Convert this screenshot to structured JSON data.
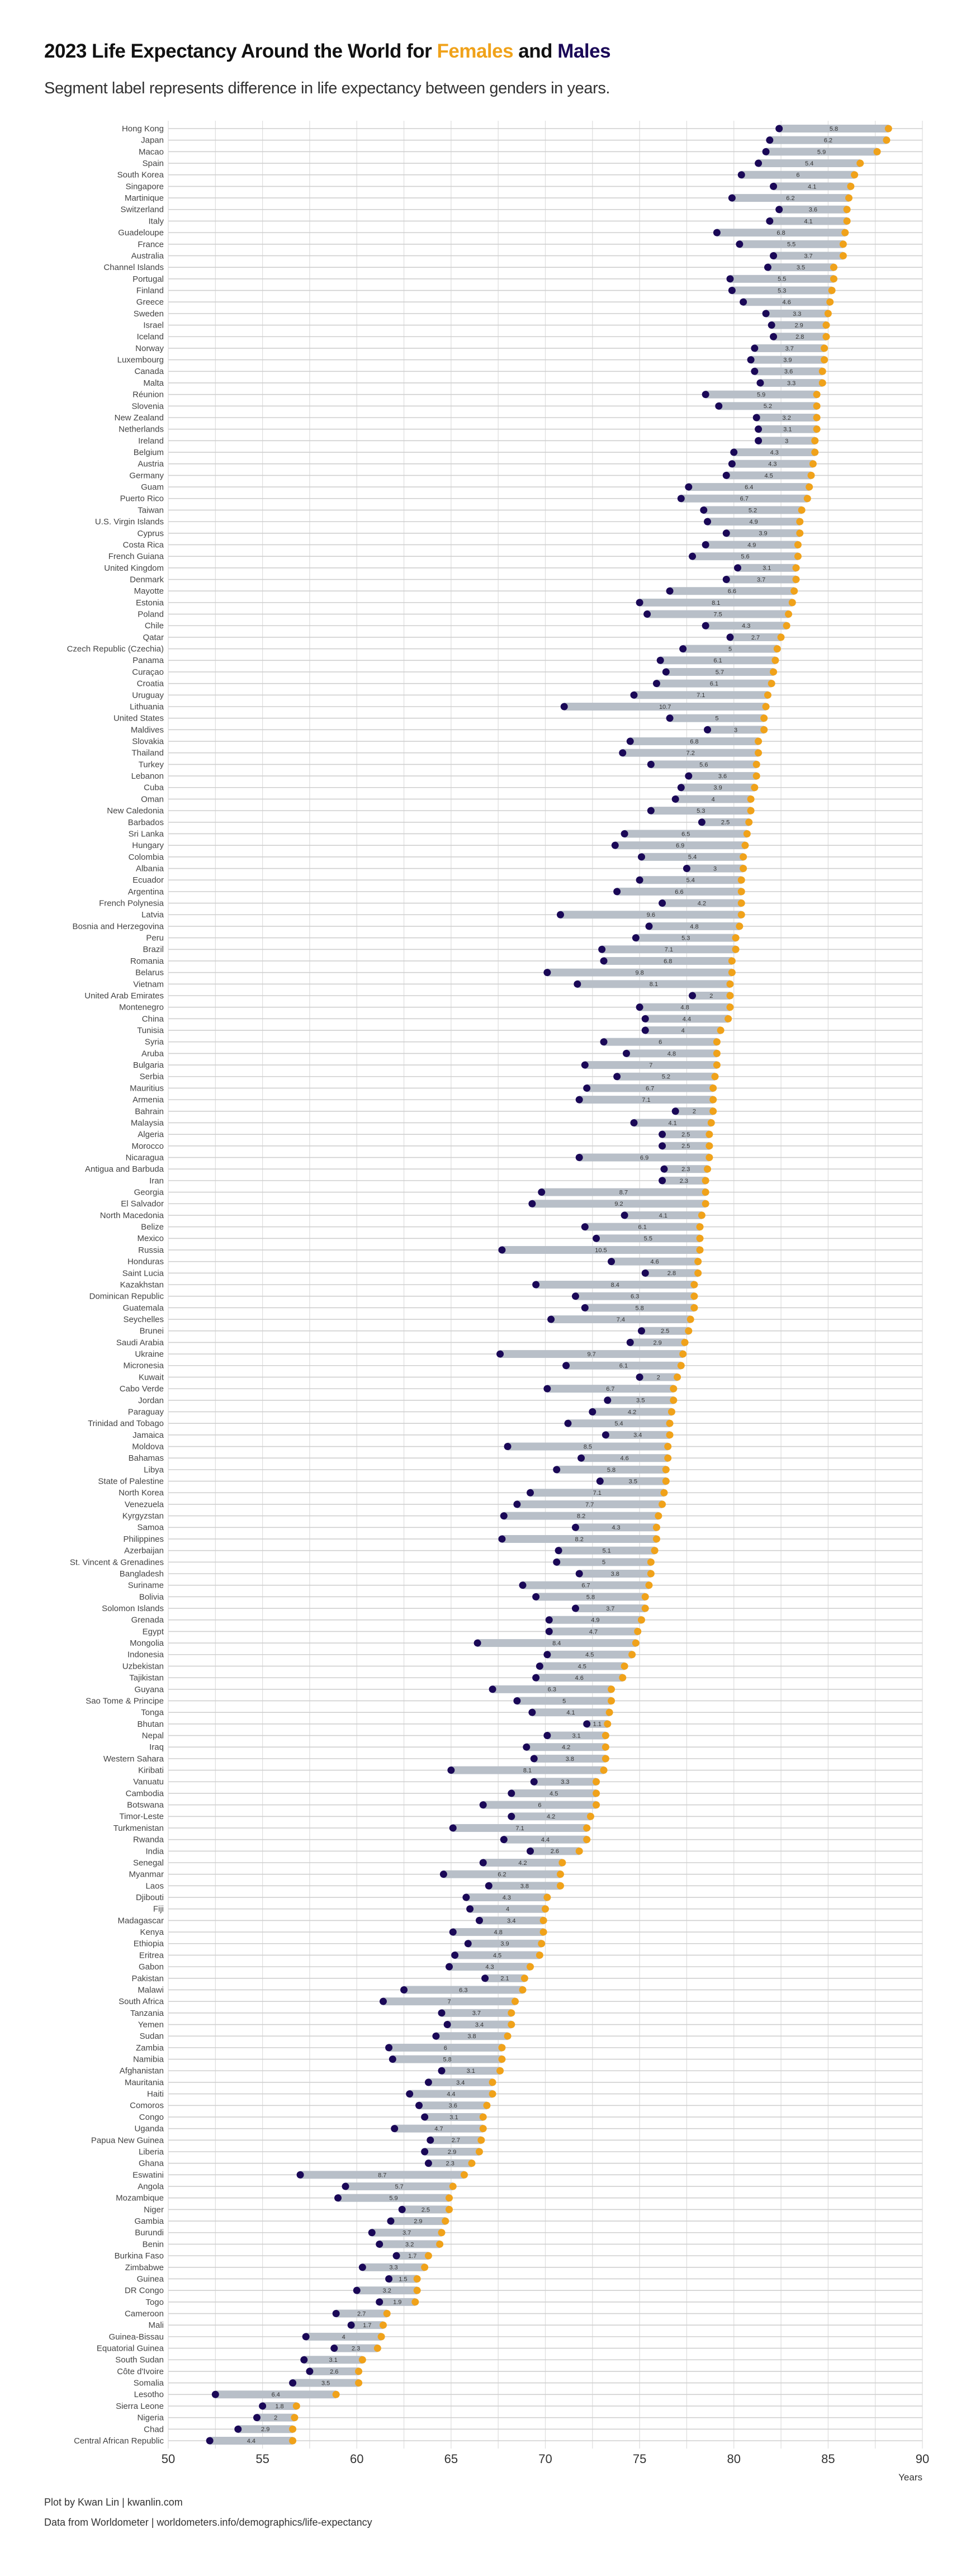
{
  "colors": {
    "female": "#F0A21A",
    "male": "#1A0857",
    "segment": "#B8BFC8",
    "grid": "#DDDDDD"
  },
  "chart_data": {
    "type": "dumbbell",
    "title_parts": {
      "prefix": "2023 Life Expectancy Around the World for ",
      "females": "Females",
      "and": " and ",
      "males": "Males"
    },
    "subtitle": "Segment label represents difference in life expectancy between genders in years.",
    "xlabel": "Years",
    "xlim": [
      50,
      90
    ],
    "xticks": [
      50,
      55,
      60,
      65,
      70,
      75,
      80,
      85,
      90
    ],
    "grid": true,
    "caption": [
      "Plot by Kwan Lin | kwanlin.com",
      "Data from Worldometer | worldometers.info/demographics/life-expectancy"
    ],
    "categories": [
      "Hong Kong",
      "Japan",
      "Macao",
      "Spain",
      "South Korea",
      "Singapore",
      "Martinique",
      "Switzerland",
      "Italy",
      "Guadeloupe",
      "France",
      "Australia",
      "Channel Islands",
      "Portugal",
      "Finland",
      "Greece",
      "Sweden",
      "Israel",
      "Iceland",
      "Norway",
      "Luxembourg",
      "Canada",
      "Malta",
      "Réunion",
      "Slovenia",
      "New Zealand",
      "Netherlands",
      "Ireland",
      "Belgium",
      "Austria",
      "Germany",
      "Guam",
      "Puerto Rico",
      "Taiwan",
      "U.S. Virgin Islands",
      "Cyprus",
      "Costa Rica",
      "French Guiana",
      "United Kingdom",
      "Denmark",
      "Mayotte",
      "Estonia",
      "Poland",
      "Chile",
      "Qatar",
      "Czech Republic (Czechia)",
      "Panama",
      "Curaçao",
      "Croatia",
      "Uruguay",
      "Lithuania",
      "United States",
      "Maldives",
      "Slovakia",
      "Thailand",
      "Turkey",
      "Lebanon",
      "Cuba",
      "Oman",
      "New Caledonia",
      "Barbados",
      "Sri Lanka",
      "Hungary",
      "Colombia",
      "Albania",
      "Ecuador",
      "Argentina",
      "French Polynesia",
      "Latvia",
      "Bosnia and Herzegovina",
      "Peru",
      "Brazil",
      "Romania",
      "Belarus",
      "Vietnam",
      "United Arab Emirates",
      "Montenegro",
      "China",
      "Tunisia",
      "Syria",
      "Aruba",
      "Bulgaria",
      "Serbia",
      "Mauritius",
      "Armenia",
      "Bahrain",
      "Malaysia",
      "Algeria",
      "Morocco",
      "Nicaragua",
      "Antigua and Barbuda",
      "Iran",
      "Georgia",
      "El Salvador",
      "North Macedonia",
      "Belize",
      "Mexico",
      "Russia",
      "Honduras",
      "Saint Lucia",
      "Kazakhstan",
      "Dominican Republic",
      "Guatemala",
      "Seychelles",
      "Brunei",
      "Saudi Arabia",
      "Ukraine",
      "Micronesia",
      "Kuwait",
      "Cabo Verde",
      "Jordan",
      "Paraguay",
      "Trinidad and Tobago",
      "Jamaica",
      "Moldova",
      "Bahamas",
      "Libya",
      "State of Palestine",
      "North Korea",
      "Venezuela",
      "Kyrgyzstan",
      "Samoa",
      "Philippines",
      "Azerbaijan",
      "St. Vincent & Grenadines",
      "Bangladesh",
      "Suriname",
      "Bolivia",
      "Solomon Islands",
      "Grenada",
      "Egypt",
      "Mongolia",
      "Indonesia",
      "Uzbekistan",
      "Tajikistan",
      "Guyana",
      "Sao Tome & Principe",
      "Tonga",
      "Bhutan",
      "Nepal",
      "Iraq",
      "Western Sahara",
      "Kiribati",
      "Vanuatu",
      "Cambodia",
      "Botswana",
      "Timor-Leste",
      "Turkmenistan",
      "Rwanda",
      "India",
      "Senegal",
      "Myanmar",
      "Laos",
      "Djibouti",
      "Fiji",
      "Madagascar",
      "Kenya",
      "Ethiopia",
      "Eritrea",
      "Gabon",
      "Pakistan",
      "Malawi",
      "South Africa",
      "Tanzania",
      "Yemen",
      "Sudan",
      "Zambia",
      "Namibia",
      "Afghanistan",
      "Mauritania",
      "Haiti",
      "Comoros",
      "Congo",
      "Uganda",
      "Papua New Guinea",
      "Liberia",
      "Ghana",
      "Eswatini",
      "Angola",
      "Mozambique",
      "Niger",
      "Gambia",
      "Burundi",
      "Benin",
      "Burkina Faso",
      "Zimbabwe",
      "Guinea",
      "DR Congo",
      "Togo",
      "Cameroon",
      "Mali",
      "Guinea-Bissau",
      "Equatorial Guinea",
      "South Sudan",
      "Côte d'Ivoire",
      "Somalia",
      "Lesotho",
      "Sierra Leone",
      "Nigeria",
      "Chad",
      "Central African Republic"
    ],
    "series": [
      {
        "name": "Females",
        "values": [
          88.2,
          88.1,
          87.6,
          86.7,
          86.4,
          86.2,
          86.1,
          86.0,
          86.0,
          85.9,
          85.8,
          85.8,
          85.3,
          85.3,
          85.2,
          85.1,
          85.0,
          84.9,
          84.9,
          84.8,
          84.8,
          84.7,
          84.7,
          84.4,
          84.4,
          84.4,
          84.4,
          84.3,
          84.3,
          84.2,
          84.1,
          84.0,
          83.9,
          83.6,
          83.5,
          83.5,
          83.4,
          83.4,
          83.3,
          83.3,
          83.2,
          83.1,
          82.9,
          82.8,
          82.5,
          82.3,
          82.2,
          82.1,
          82.0,
          81.8,
          81.7,
          81.6,
          81.6,
          81.3,
          81.3,
          81.2,
          81.2,
          81.1,
          80.9,
          80.9,
          80.8,
          80.7,
          80.6,
          80.5,
          80.5,
          80.4,
          80.4,
          80.4,
          80.4,
          80.3,
          80.1,
          80.1,
          79.9,
          79.9,
          79.8,
          79.8,
          79.8,
          79.7,
          79.3,
          79.1,
          79.1,
          79.1,
          79.0,
          78.9,
          78.9,
          78.9,
          78.8,
          78.7,
          78.7,
          78.7,
          78.6,
          78.5,
          78.5,
          78.5,
          78.3,
          78.2,
          78.2,
          78.2,
          78.1,
          78.1,
          77.9,
          77.9,
          77.9,
          77.7,
          77.6,
          77.4,
          77.3,
          77.2,
          77.0,
          76.8,
          76.8,
          76.7,
          76.6,
          76.6,
          76.5,
          76.5,
          76.4,
          76.4,
          76.3,
          76.2,
          76.0,
          75.9,
          75.9,
          75.8,
          75.6,
          75.6,
          75.5,
          75.3,
          75.3,
          75.1,
          74.9,
          74.8,
          74.6,
          74.2,
          74.1,
          73.5,
          73.5,
          73.4,
          73.3,
          73.2,
          73.2,
          73.2,
          73.1,
          72.7,
          72.7,
          72.7,
          72.4,
          72.2,
          72.2,
          71.8,
          70.9,
          70.8,
          70.8,
          70.1,
          70.0,
          69.9,
          69.9,
          69.8,
          69.7,
          69.2,
          68.9,
          68.8,
          68.4,
          68.2,
          68.2,
          68.0,
          67.7,
          67.7,
          67.6,
          67.2,
          67.2,
          66.9,
          66.7,
          66.7,
          66.6,
          66.5,
          66.1,
          65.7,
          65.1,
          64.9,
          64.9,
          64.7,
          64.5,
          64.4,
          63.8,
          63.6,
          63.2,
          63.2,
          63.1,
          61.6,
          61.4,
          61.3,
          61.1,
          60.3,
          60.1,
          60.1,
          58.9,
          56.8,
          56.7,
          56.6,
          56.6
        ]
      },
      {
        "name": "Males",
        "values": [
          82.4,
          81.9,
          81.7,
          81.3,
          80.4,
          82.1,
          79.9,
          82.4,
          81.9,
          79.1,
          80.3,
          82.1,
          81.8,
          79.8,
          79.9,
          80.5,
          81.7,
          82.0,
          82.1,
          81.1,
          80.9,
          81.1,
          81.4,
          78.5,
          79.2,
          81.2,
          81.3,
          81.3,
          80.0,
          79.9,
          79.6,
          77.6,
          77.2,
          78.4,
          78.6,
          79.6,
          78.5,
          77.8,
          80.2,
          79.6,
          76.6,
          75.0,
          75.4,
          78.5,
          79.8,
          77.3,
          76.1,
          76.4,
          75.9,
          74.7,
          71.0,
          76.6,
          78.6,
          74.5,
          74.1,
          75.6,
          77.6,
          77.2,
          76.9,
          75.6,
          78.3,
          74.2,
          73.7,
          75.1,
          77.5,
          75.0,
          73.8,
          76.2,
          70.8,
          75.5,
          74.8,
          73.0,
          73.1,
          70.1,
          71.7,
          77.8,
          75.0,
          75.3,
          75.3,
          73.1,
          74.3,
          72.1,
          73.8,
          72.2,
          71.8,
          76.9,
          74.7,
          76.2,
          76.2,
          71.8,
          76.3,
          76.2,
          69.8,
          69.3,
          74.2,
          72.1,
          72.7,
          67.7,
          73.5,
          75.3,
          69.5,
          71.6,
          72.1,
          70.3,
          75.1,
          74.5,
          67.6,
          71.1,
          75.0,
          70.1,
          73.3,
          72.5,
          71.2,
          73.2,
          68.0,
          71.9,
          70.6,
          72.9,
          69.2,
          68.5,
          67.8,
          71.6,
          67.7,
          70.7,
          70.6,
          71.8,
          68.8,
          69.5,
          71.6,
          70.2,
          70.2,
          66.4,
          70.1,
          69.7,
          69.5,
          67.2,
          68.5,
          69.3,
          72.2,
          70.1,
          69.0,
          69.4,
          65.0,
          69.4,
          68.2,
          66.7,
          68.2,
          65.1,
          67.8,
          69.2,
          66.7,
          64.6,
          67.0,
          65.8,
          66.0,
          66.5,
          65.1,
          65.9,
          65.2,
          64.9,
          66.8,
          62.5,
          61.4,
          64.5,
          64.8,
          64.2,
          61.7,
          61.9,
          64.5,
          63.8,
          62.8,
          63.3,
          63.6,
          62.0,
          63.9,
          63.6,
          63.8,
          57.0,
          59.4,
          59.0,
          62.4,
          61.8,
          60.8,
          61.2,
          62.1,
          60.3,
          61.7,
          60.0,
          61.2,
          58.9,
          59.7,
          57.3,
          58.8,
          57.2,
          57.5,
          56.6,
          52.5,
          55.0,
          54.7,
          53.7,
          52.2
        ]
      }
    ],
    "difference_labels": [
      5.8,
      6.2,
      5.9,
      5.4,
      6,
      4.1,
      6.2,
      3.6,
      4.1,
      6.8,
      5.5,
      3.7,
      3.5,
      5.5,
      5.3,
      4.6,
      3.3,
      2.9,
      2.8,
      3.7,
      3.9,
      3.6,
      3.3,
      5.9,
      5.2,
      3.2,
      3.1,
      3,
      4.3,
      4.3,
      4.5,
      6.4,
      6.7,
      5.2,
      4.9,
      3.9,
      4.9,
      5.6,
      3.1,
      3.7,
      6.6,
      8.1,
      7.5,
      4.3,
      2.7,
      5,
      6.1,
      5.7,
      6.1,
      7.1,
      10.7,
      5,
      3,
      6.8,
      7.2,
      5.6,
      3.6,
      3.9,
      4,
      5.3,
      2.5,
      6.5,
      6.9,
      5.4,
      3,
      5.4,
      6.6,
      4.2,
      9.6,
      4.8,
      5.3,
      7.1,
      6.8,
      9.8,
      8.1,
      2,
      4.8,
      4.4,
      4,
      6,
      4.8,
      7,
      5.2,
      6.7,
      7.1,
      2,
      4.1,
      2.5,
      2.5,
      6.9,
      2.3,
      2.3,
      8.7,
      9.2,
      4.1,
      6.1,
      5.5,
      10.5,
      4.6,
      2.8,
      8.4,
      6.3,
      5.8,
      7.4,
      2.5,
      2.9,
      9.7,
      6.1,
      2,
      6.7,
      3.5,
      4.2,
      5.4,
      3.4,
      8.5,
      4.6,
      5.8,
      3.5,
      7.1,
      7.7,
      8.2,
      4.3,
      8.2,
      5.1,
      5,
      3.8,
      6.7,
      5.8,
      3.7,
      4.9,
      4.7,
      8.4,
      4.5,
      4.5,
      4.6,
      6.3,
      5,
      4.1,
      1.1,
      3.1,
      4.2,
      3.8,
      8.1,
      3.3,
      4.5,
      6,
      4.2,
      7.1,
      4.4,
      2.6,
      4.2,
      6.2,
      3.8,
      4.3,
      4,
      3.4,
      4.8,
      3.9,
      4.5,
      4.3,
      2.1,
      6.3,
      7,
      3.7,
      3.4,
      3.8,
      6,
      5.8,
      3.1,
      3.4,
      4.4,
      3.6,
      3.1,
      4.7,
      2.7,
      2.9,
      2.3,
      8.7,
      5.7,
      5.9,
      2.5,
      2.9,
      3.7,
      3.2,
      1.7,
      3.3,
      1.5,
      3.2,
      1.9,
      2.7,
      1.7,
      4,
      2.3,
      3.1,
      2.6,
      3.5,
      6.4,
      1.8,
      2,
      2.9,
      4.4
    ]
  }
}
